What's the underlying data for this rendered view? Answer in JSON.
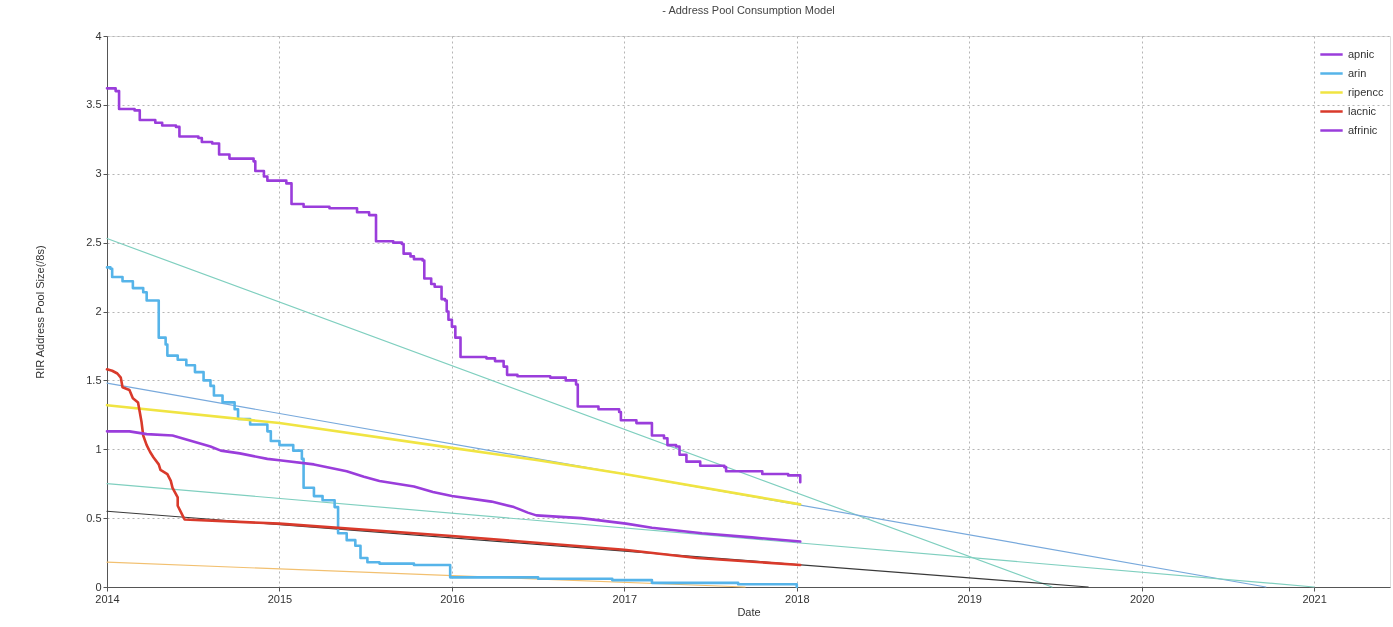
{
  "chart_data": {
    "type": "line",
    "title": "- Address Pool Consumption Model",
    "xlabel": "Date",
    "ylabel": "RIR Address Pool Size(/8s)",
    "xlim": [
      2014,
      2021.44
    ],
    "xticks": [
      2014,
      2015,
      2016,
      2017,
      2018,
      2019,
      2020,
      2021
    ],
    "ylim": [
      0,
      4
    ],
    "yticks": [
      0,
      0.5,
      1,
      1.5,
      2,
      2.5,
      3,
      3.5,
      4
    ],
    "grid": true,
    "legend": "top right",
    "series": [
      {
        "color": "#7fcfbf",
        "x": [
          2014.0,
          2019.48
        ],
        "values": [
          2.53,
          0
        ]
      },
      {
        "color": "#78a9dc",
        "x": [
          2014.0,
          2020.72
        ],
        "values": [
          1.48,
          0
        ]
      },
      {
        "color": "#7fcfbf",
        "x": [
          2014.0,
          2021.0
        ],
        "values": [
          0.75,
          0
        ]
      },
      {
        "color": "#3a3a3a",
        "x": [
          2014.0,
          2019.69
        ],
        "values": [
          0.55,
          0
        ]
      },
      {
        "color": "#f2c070",
        "x": [
          2014.0,
          2017.7
        ],
        "values": [
          0.18,
          0
        ]
      },
      {
        "name": "apnic",
        "type": "step",
        "color": "#9a3ddb",
        "x": [
          2014.0,
          2014.04,
          2014.05,
          2014.07,
          2014.07,
          2014.16,
          2014.19,
          2014.28,
          2014.32,
          2014.4,
          2014.42,
          2014.53,
          2014.55,
          2014.61,
          2014.65,
          2014.71,
          2014.85,
          2014.86,
          2014.91,
          2014.93,
          2015.04,
          2015.07,
          2015.07,
          2015.14,
          2015.29,
          2015.45,
          2015.52,
          2015.56,
          2015.56,
          2015.66,
          2015.71,
          2015.72,
          2015.76,
          2015.78,
          2015.83,
          2015.84,
          2015.88,
          2015.9,
          2015.94,
          2015.96,
          2015.97,
          2015.98,
          2016.0,
          2016.02,
          2016.05,
          2016.05,
          2016.2,
          2016.25,
          2016.3,
          2016.32,
          2016.38,
          2016.57,
          2016.66,
          2016.72,
          2016.73,
          2016.85,
          2016.97,
          2016.98,
          2017.07,
          2017.16,
          2017.16,
          2017.23,
          2017.25,
          2017.3,
          2017.32,
          2017.36,
          2017.44,
          2017.58,
          2017.59,
          2017.8,
          2017.95,
          2018.02
        ],
        "values": [
          3.62,
          3.62,
          3.6,
          3.58,
          3.47,
          3.46,
          3.39,
          3.37,
          3.35,
          3.34,
          3.27,
          3.26,
          3.23,
          3.22,
          3.14,
          3.11,
          3.09,
          3.02,
          2.98,
          2.95,
          2.93,
          2.9,
          2.78,
          2.76,
          2.75,
          2.72,
          2.7,
          2.67,
          2.51,
          2.5,
          2.49,
          2.42,
          2.4,
          2.38,
          2.37,
          2.24,
          2.2,
          2.18,
          2.09,
          2.08,
          2.0,
          1.94,
          1.89,
          1.81,
          1.76,
          1.67,
          1.66,
          1.64,
          1.6,
          1.54,
          1.53,
          1.52,
          1.5,
          1.47,
          1.31,
          1.29,
          1.27,
          1.21,
          1.19,
          1.17,
          1.1,
          1.08,
          1.03,
          1.02,
          0.96,
          0.91,
          0.88,
          0.87,
          0.84,
          0.82,
          0.81,
          0.76
        ]
      },
      {
        "name": "arin",
        "type": "step",
        "color": "#56b4e9",
        "x": [
          2014.0,
          2014.02,
          2014.03,
          2014.09,
          2014.15,
          2014.21,
          2014.23,
          2014.3,
          2014.3,
          2014.34,
          2014.35,
          2014.41,
          2014.46,
          2014.51,
          2014.56,
          2014.6,
          2014.62,
          2014.67,
          2014.74,
          2014.76,
          2014.83,
          2014.93,
          2014.95,
          2015.0,
          2015.08,
          2015.13,
          2015.14,
          2015.2,
          2015.25,
          2015.32,
          2015.34,
          2015.39,
          2015.44,
          2015.47,
          2015.51,
          2015.58,
          2015.78,
          2015.98,
          2015.99,
          2016.5,
          2016.93,
          2017.16,
          2017.66,
          2018.0
        ],
        "values": [
          2.32,
          2.31,
          2.25,
          2.22,
          2.17,
          2.14,
          2.08,
          2.05,
          1.81,
          1.76,
          1.68,
          1.65,
          1.61,
          1.56,
          1.5,
          1.46,
          1.39,
          1.34,
          1.29,
          1.22,
          1.18,
          1.13,
          1.06,
          1.03,
          0.99,
          0.93,
          0.72,
          0.66,
          0.63,
          0.58,
          0.39,
          0.34,
          0.3,
          0.21,
          0.18,
          0.17,
          0.16,
          0.16,
          0.07,
          0.06,
          0.05,
          0.03,
          0.02,
          0.0
        ]
      },
      {
        "name": "ripencc",
        "color": "#f0e442",
        "x": [
          2014.0,
          2015.0,
          2016.0,
          2016.5,
          2017.0,
          2018.02
        ],
        "values": [
          1.32,
          1.19,
          1.01,
          0.92,
          0.82,
          0.6
        ]
      },
      {
        "name": "lacnic",
        "color": "#d93a2b",
        "x": [
          2014.0,
          2014.03,
          2014.06,
          2014.08,
          2014.09,
          2014.13,
          2014.15,
          2014.18,
          2014.19,
          2014.2,
          2014.21,
          2014.23,
          2014.25,
          2014.27,
          2014.3,
          2014.31,
          2014.35,
          2014.37,
          2014.38,
          2014.41,
          2014.41,
          2014.43,
          2014.45,
          2015.0,
          2016.0,
          2017.0,
          2017.42,
          2018.02
        ],
        "values": [
          1.58,
          1.57,
          1.55,
          1.52,
          1.45,
          1.43,
          1.37,
          1.34,
          1.27,
          1.2,
          1.1,
          1.03,
          0.98,
          0.94,
          0.89,
          0.85,
          0.82,
          0.77,
          0.72,
          0.65,
          0.59,
          0.54,
          0.49,
          0.46,
          0.37,
          0.27,
          0.21,
          0.16
        ]
      },
      {
        "name": "afrinic",
        "color": "#9a3ddb",
        "x": [
          2014.0,
          2014.13,
          2014.23,
          2014.38,
          2014.46,
          2014.6,
          2014.66,
          2014.77,
          2014.93,
          2015.0,
          2015.2,
          2015.39,
          2015.49,
          2015.58,
          2015.78,
          2015.89,
          2016.0,
          2016.23,
          2016.36,
          2016.44,
          2016.49,
          2016.75,
          2017.01,
          2017.16,
          2017.45,
          2017.74,
          2018.02
        ],
        "values": [
          1.13,
          1.13,
          1.11,
          1.1,
          1.07,
          1.02,
          0.99,
          0.97,
          0.93,
          0.92,
          0.89,
          0.84,
          0.8,
          0.77,
          0.73,
          0.69,
          0.66,
          0.62,
          0.58,
          0.54,
          0.52,
          0.5,
          0.46,
          0.43,
          0.39,
          0.36,
          0.33
        ]
      }
    ]
  }
}
